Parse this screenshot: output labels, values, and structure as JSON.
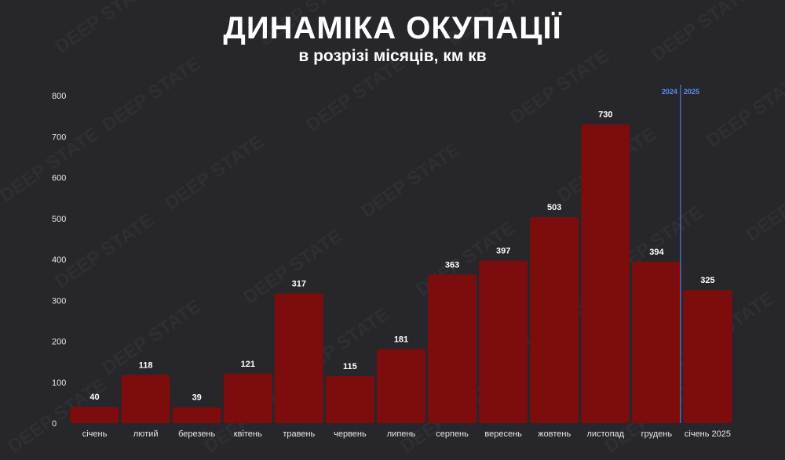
{
  "header": {
    "title": "ДИНАМІКА ОКУПАЦІЇ",
    "subtitle": "в розрізі місяців, км кв"
  },
  "watermark_text": "DEEP STATE",
  "colors": {
    "background": "#26262b",
    "bar": "#7d0d0d",
    "divider": "#5b8ff9",
    "year_label": "#5b8ff9"
  },
  "chart_data": {
    "type": "bar",
    "title": "ДИНАМІКА ОКУПАЦІЇ",
    "subtitle": "в розрізі місяців, км кв",
    "xlabel": "",
    "ylabel": "",
    "categories": [
      "січень",
      "лютий",
      "березень",
      "квітень",
      "травень",
      "червень",
      "липень",
      "серпень",
      "вересень",
      "жовтень",
      "листопад",
      "грудень",
      "січень 2025"
    ],
    "values": [
      40,
      118,
      39,
      121,
      317,
      115,
      181,
      363,
      397,
      503,
      730,
      394,
      325
    ],
    "ylim": [
      0,
      800
    ],
    "yticks": [
      0,
      100,
      200,
      300,
      400,
      500,
      600,
      700,
      800
    ],
    "grid": false,
    "data_labels": true,
    "year_divider": {
      "after_category_index": 11,
      "left_label": "2024",
      "right_label": "2025"
    }
  }
}
